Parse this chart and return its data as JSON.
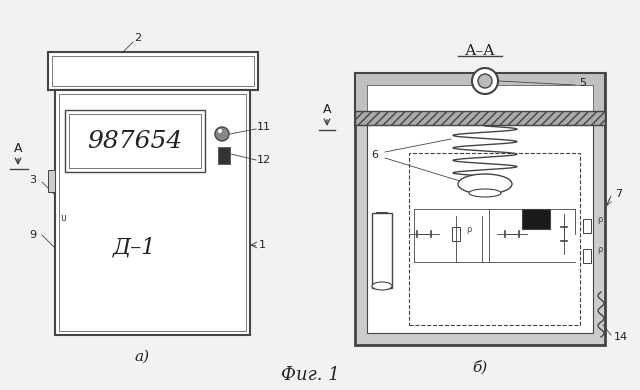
{
  "bg_color": "#f2f2f2",
  "line_color": "#444444",
  "fig_label": "Фиг. 1",
  "view_a_label": "а)",
  "view_b_label": "б)",
  "section_label": "А–А",
  "display_number": "987654",
  "device_label": "Д–1"
}
